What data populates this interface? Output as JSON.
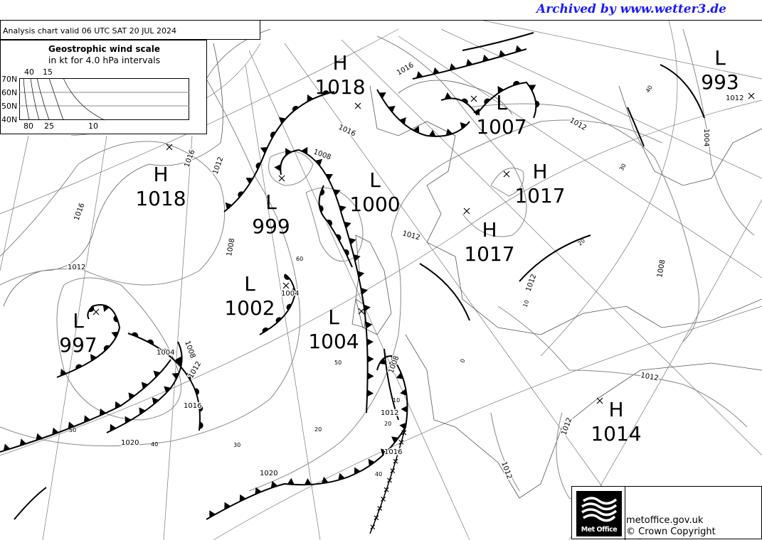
{
  "archive_label": "Archived by www.wetter3.de",
  "chart_title": "Analysis chart  valid 06 UTC SAT 20  JUL 2024",
  "wind_scale": {
    "title": "Geostrophic wind scale",
    "subtitle": "in kt for 4.0 hPa intervals",
    "lat_labels": [
      "70N",
      "60N",
      "50N",
      "40N"
    ],
    "top_labels": [
      "40",
      "15"
    ],
    "bottom_labels": [
      "80",
      "25",
      "10"
    ]
  },
  "pressure_centres": [
    {
      "type": "H",
      "value": "1018"
    },
    {
      "type": "L",
      "value": "1007"
    },
    {
      "type": "L",
      "value": "993"
    },
    {
      "type": "H",
      "value": "1018"
    },
    {
      "type": "L",
      "value": "999"
    },
    {
      "type": "L",
      "value": "1000"
    },
    {
      "type": "H",
      "value": "1017"
    },
    {
      "type": "H",
      "value": "1017"
    },
    {
      "type": "L",
      "value": "1002"
    },
    {
      "type": "L",
      "value": "1004"
    },
    {
      "type": "L",
      "value": "997"
    },
    {
      "type": "H",
      "value": "1014"
    }
  ],
  "isobar_labels": [
    "1016",
    "1016",
    "1012",
    "1008",
    "1016",
    "1016",
    "1012",
    "1008",
    "1012",
    "1012",
    "1004",
    "1008",
    "1004",
    "1012",
    "1016",
    "1012",
    "1020",
    "1020",
    "1016",
    "1012",
    "1012",
    "1012",
    "1008",
    "1004",
    "1012",
    "1008",
    "1012"
  ],
  "grid_labels": [
    "40",
    "30",
    "20",
    "10",
    "0",
    "60",
    "50",
    "50",
    "40",
    "30",
    "20",
    "40",
    "20",
    "10"
  ],
  "colors": {
    "archive": "#1a1aff",
    "isobar": "#888888",
    "front": "#000000"
  },
  "footer": {
    "logo_text": "Met Office",
    "site": "metoffice.gov.uk",
    "copyright": "© Crown Copyright"
  }
}
